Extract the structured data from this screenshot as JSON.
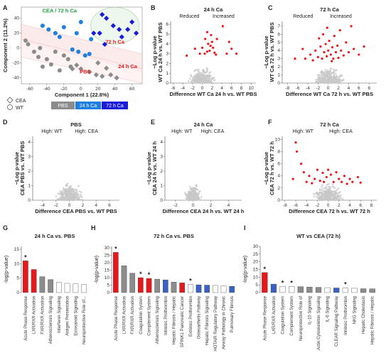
{
  "panel_letters": [
    "A",
    "B",
    "C",
    "D",
    "E",
    "F",
    "G",
    "H",
    "I"
  ],
  "colors": {
    "wt_gray": "#8c8c8c",
    "light_gray": "#c8c8c8",
    "red": "#e8171c",
    "blue": "#1f4fd0",
    "dark_blue": "#1a1adb",
    "mid_blue": "#1f7fe0",
    "green": "#1c9c3c",
    "annot_red": "#e8171c",
    "bar_gray": "#8c8c8c",
    "bar_blue": "#3a62c4",
    "bar_white": "#ffffff"
  },
  "chart_data": [
    {
      "panel": "A",
      "type": "scatter",
      "xlabel": "Component 1 (22.8%)",
      "ylabel": "Component 2 (11.2%)",
      "xticks": [
        "-60",
        "-40",
        "-20",
        "0",
        "20",
        "40",
        "60"
      ],
      "yticks": [
        "-40",
        "-20",
        "0",
        "20",
        "40"
      ],
      "xlim": [
        -70,
        72
      ],
      "ylim": [
        -48,
        55
      ],
      "legend": {
        "shapes": [
          "CEA",
          "WT"
        ],
        "groups": [
          "PBS",
          "24 h Ca",
          "72 h Ca"
        ]
      },
      "annotations": {
        "cea72": "CEA / 72 h Ca",
        "ca72": "72 h Ca",
        "ca24": "24 h Ca",
        "pbs": "PBS"
      },
      "series": [
        {
          "group": "PBS",
          "shape": "diamond",
          "color": "#8c8c8c",
          "points": [
            [
              -5,
              -23
            ],
            [
              0,
              -28
            ],
            [
              10,
              -32
            ],
            [
              18,
              -36
            ],
            [
              30,
              -27
            ],
            [
              25,
              -38
            ],
            [
              35,
              -36
            ],
            [
              42,
              -40
            ],
            [
              20,
              -20
            ],
            [
              -10,
              -28
            ]
          ]
        },
        {
          "group": "PBS",
          "shape": "circle",
          "color": "#8c8c8c",
          "points": [
            [
              -65,
              10
            ],
            [
              -62,
              5
            ],
            [
              -55,
              -5
            ],
            [
              -50,
              -12
            ],
            [
              -48,
              0
            ],
            [
              -40,
              -15
            ],
            [
              -35,
              -22
            ],
            [
              -30,
              -5
            ],
            [
              -25,
              -30
            ],
            [
              -20,
              -10
            ],
            [
              -45,
              -25
            ],
            [
              -15,
              -15
            ],
            [
              -12,
              -25
            ]
          ]
        },
        {
          "group": "24 h Ca",
          "shape": "circle",
          "color": "#1f7fe0",
          "points": [
            [
              -45,
              30
            ],
            [
              -38,
              25
            ],
            [
              -30,
              20
            ],
            [
              -25,
              15
            ],
            [
              -20,
              28
            ],
            [
              -10,
              -2
            ],
            [
              -3,
              -5
            ],
            [
              5,
              -10
            ],
            [
              10,
              -8
            ],
            [
              12,
              12
            ],
            [
              0,
              35
            ],
            [
              -5,
              20
            ]
          ]
        },
        {
          "group": "72 h Ca",
          "shape": "diamond",
          "color": "#1a1adb",
          "points": [
            [
              25,
              45
            ],
            [
              30,
              40
            ],
            [
              38,
              30
            ],
            [
              45,
              25
            ],
            [
              48,
              15
            ],
            [
              55,
              25
            ],
            [
              60,
              35
            ],
            [
              65,
              20
            ],
            [
              28,
              5
            ],
            [
              22,
              20
            ],
            [
              15,
              20
            ]
          ]
        }
      ]
    },
    {
      "panel": "B",
      "type": "scatter",
      "title": "24 h Ca",
      "header": {
        "left": "Reduced",
        "right": "Increased"
      },
      "xlabel": "Difference  WT Ca 24 h vs. WT PBS",
      "ylabel": [
        "−Log p-value",
        "WT Ca 24 h vs. WT PBS"
      ],
      "xticks": [
        "-6",
        "-4",
        "-2",
        "0",
        "2",
        "4",
        "6",
        "8",
        "10"
      ],
      "yticks": [
        "0",
        "1",
        "2",
        "3",
        "4",
        "5",
        "6"
      ],
      "xlim": [
        -6.5,
        11
      ],
      "ylim": [
        0,
        6.3
      ],
      "significant": [
        [
          -3.2,
          2.8
        ],
        [
          -1.5,
          3.5
        ],
        [
          0.5,
          3.0
        ],
        [
          0.6,
          4.5
        ],
        [
          1.0,
          3.2
        ],
        [
          1.2,
          4.0
        ],
        [
          1.5,
          3.3
        ],
        [
          1.7,
          3.8
        ],
        [
          2.0,
          4.2
        ],
        [
          2.2,
          3.6
        ],
        [
          2.5,
          3.1
        ],
        [
          3.0,
          4.5
        ],
        [
          1.8,
          4.9
        ],
        [
          2.8,
          2.9
        ],
        [
          5.0,
          3.0
        ],
        [
          5.5,
          4.2
        ],
        [
          6.0,
          3.5
        ],
        [
          4.2,
          5.8
        ],
        [
          7.0,
          3.0
        ],
        [
          0.0,
          3.6
        ],
        [
          -0.5,
          3.0
        ],
        [
          1.0,
          5.2
        ]
      ]
    },
    {
      "panel": "C",
      "type": "scatter",
      "title": "72 h Ca",
      "header": {
        "left": "Reduced",
        "right": "Increased"
      },
      "xlabel": "Difference  WT Ca 72 h vs. WT PBS",
      "ylabel": [
        "−Log p-value",
        "WT Ca 72 h vs. WT PBS"
      ],
      "xticks": [
        "-8",
        "-6",
        "-4",
        "-2",
        "0",
        "2",
        "4",
        "6",
        "8"
      ],
      "yticks": [
        "0",
        "1",
        "2",
        "3",
        "4",
        "5",
        "6",
        "7"
      ],
      "xlim": [
        -9,
        9.5
      ],
      "ylim": [
        0,
        7.6
      ],
      "significant": [
        [
          -6.5,
          3.0
        ],
        [
          -5.0,
          4.2
        ],
        [
          -4.5,
          3.0
        ],
        [
          -3.5,
          3.5
        ],
        [
          -3.0,
          2.8
        ],
        [
          -2.5,
          4.0
        ],
        [
          -2.0,
          3.2
        ],
        [
          -1.8,
          5.5
        ],
        [
          -1.5,
          4.5
        ],
        [
          -1.2,
          3.0
        ],
        [
          -1.0,
          6.0
        ],
        [
          -0.8,
          3.8
        ],
        [
          -0.5,
          4.8
        ],
        [
          -0.3,
          3.3
        ],
        [
          0.0,
          4.0
        ],
        [
          0.2,
          5.2
        ],
        [
          0.5,
          3.5
        ],
        [
          0.8,
          4.4
        ],
        [
          1.0,
          3.0
        ],
        [
          1.2,
          5.8
        ],
        [
          1.5,
          3.8
        ],
        [
          1.8,
          4.6
        ],
        [
          2.0,
          3.1
        ],
        [
          2.3,
          6.5
        ],
        [
          2.5,
          4.0
        ],
        [
          3.0,
          3.4
        ],
        [
          3.5,
          5.0
        ],
        [
          4.0,
          3.8
        ],
        [
          4.5,
          7.0
        ],
        [
          5.0,
          4.2
        ],
        [
          6.0,
          3.5
        ],
        [
          7.0,
          4.5
        ],
        [
          -0.2,
          6.8
        ],
        [
          0.7,
          2.7
        ]
      ]
    },
    {
      "panel": "D",
      "type": "scatter",
      "title": "PBS",
      "header": {
        "left": "High: WT",
        "right": "High: CEA"
      },
      "xlabel": "Difference CEA PBS vs. WT PBS",
      "ylabel": [
        "−Log p-value",
        "CEA PBS vs. WT PBS"
      ],
      "xticks": [
        "-4",
        "-2",
        "0",
        "2",
        "4",
        "6"
      ],
      "yticks": [
        "0",
        "1",
        "2",
        "3",
        "4"
      ],
      "xlim": [
        -5.5,
        7.5
      ],
      "ylim": [
        0,
        4.4
      ],
      "significant": []
    },
    {
      "panel": "E",
      "type": "scatter",
      "title": "24 h Ca",
      "header": {
        "left": "High: WT",
        "right": "High: CEA"
      },
      "xlabel": "Difference CEA 24 h vs. WT 24 h",
      "ylabel": [
        "−Log p-value",
        "CEA 24 h vs. WT 24 h"
      ],
      "xticks": [
        "-2",
        "0",
        "2",
        "4"
      ],
      "yticks": [
        "0",
        "1",
        "2",
        "3",
        "4"
      ],
      "xlim": [
        -3.2,
        5.5
      ],
      "ylim": [
        0,
        4.4
      ],
      "significant": []
    },
    {
      "panel": "F",
      "type": "scatter",
      "title": "72 h Ca",
      "header": {
        "left": "High: WT",
        "right": "High: CEA"
      },
      "xlabel": "Difference CEA 72 h vs. WT 72 h",
      "ylabel": [
        "−Log p-value",
        "CEA 72 h vs. WT 72 h"
      ],
      "xticks": [
        "-8",
        "-6",
        "-4",
        "-2",
        "0",
        "2",
        "4",
        "6",
        "8"
      ],
      "yticks": [
        "0",
        "2",
        "4",
        "6",
        "8",
        "10"
      ],
      "xlim": [
        -8.5,
        9
      ],
      "ylim": [
        0,
        10.5
      ],
      "significant": [
        [
          -6.0,
          9.5
        ],
        [
          -5.8,
          8.0
        ],
        [
          -6.5,
          3.5
        ],
        [
          -5.0,
          6.0
        ],
        [
          -4.0,
          3.0
        ],
        [
          -3.5,
          4.0
        ],
        [
          -3.0,
          2.8
        ],
        [
          -2.5,
          3.5
        ],
        [
          -2.0,
          5.0
        ],
        [
          -1.5,
          3.2
        ],
        [
          -1.0,
          4.5
        ],
        [
          -0.8,
          3.0
        ],
        [
          -0.3,
          3.8
        ],
        [
          0.5,
          4.2
        ],
        [
          1.0,
          3.0
        ],
        [
          1.5,
          4.6
        ],
        [
          2.0,
          3.5
        ],
        [
          2.5,
          3.0
        ],
        [
          3.0,
          4.0
        ],
        [
          3.5,
          2.7
        ],
        [
          4.0,
          3.5
        ],
        [
          4.5,
          3.0
        ],
        [
          5.5,
          3.8
        ],
        [
          6.0,
          2.9
        ],
        [
          -4.5,
          4.6
        ],
        [
          0.0,
          5.0
        ]
      ]
    },
    {
      "panel": "G",
      "type": "bar",
      "title": "24 h Ca vs. PBS",
      "ylabel": "-log(p-value)",
      "yticks": [
        "0",
        "5",
        "10",
        "15"
      ],
      "ylim": [
        0,
        16
      ],
      "categories": [
        "Acute Phase Response",
        "LXR/RXR Activation",
        "FXR/RXR Activation",
        "Atherosclerosis Signaling",
        "Interferon Signaling",
        "Antigen Presentation",
        "Eicosanoid Signaling",
        "Neuroprotective Role of..."
      ],
      "values": [
        11,
        8,
        5.5,
        4.5,
        3.5,
        3.2,
        3.0,
        2.8
      ],
      "bar_colors": [
        "red",
        "red",
        "gray",
        "gray",
        "white",
        "white",
        "white",
        "white"
      ],
      "stars": [
        0
      ]
    },
    {
      "panel": "H",
      "type": "bar",
      "title": "72 h Ca vs. PBS",
      "ylabel": "-log(p-value)",
      "yticks": [
        "0",
        "5",
        "10",
        "15",
        "20",
        "25",
        "30"
      ],
      "ylim": [
        0,
        31
      ],
      "categories": [
        "Acute Phase Response",
        "LXR/RXR Activation",
        "FXR/RXR Activation",
        "Coagulation System",
        "Complement System",
        "Atherosclerosis Signaling",
        "Intrinsic Prothrombin",
        "Hepatic Fibrosis / Hepatic",
        "SPINK1 Pancreatic Cancer",
        "Extrinsic Prothrombin",
        "Osteoarthritis Pathway",
        "Hepatic Fibrosis Signaling",
        "HOTAIR Regulatory Pathway",
        "Airway Pathology in Chronic",
        "Pulmonary Fibrosis"
      ],
      "values": [
        27,
        18,
        13,
        10,
        9.5,
        9,
        8.5,
        7,
        6.5,
        5.5,
        5.2,
        5,
        4.8,
        4.5,
        4.2
      ],
      "bar_colors": [
        "red",
        "gray",
        "gray",
        "red",
        "red",
        "gray",
        "blue",
        "gray",
        "red",
        "white",
        "blue",
        "blue",
        "white",
        "white",
        "blue"
      ],
      "stars": [
        0,
        3,
        4,
        9
      ]
    },
    {
      "panel": "I",
      "type": "bar",
      "title": "WT vs CEA (72 h)",
      "ylabel": "-log(p-value)",
      "yticks": [
        "0",
        "5",
        "10",
        "15",
        "20",
        "25",
        "30"
      ],
      "ylim": [
        0,
        30
      ],
      "categories": [
        "Acute Phase Response",
        "LXR/RXR Activation",
        "Coagulation System",
        "Complement System",
        "Neuroprotective Role of",
        "IL-10 Signaling",
        "Actin Cytoskeleton Signaling",
        "IL-6 Signaling",
        "CLEAR Signaling Pathway",
        "Intrinsic Prothrombin",
        "NKG Signaling",
        "Hepatic Cholestasis",
        "Hepatic Fibrosis / Hepatic"
      ],
      "values": [
        13,
        5.5,
        4,
        4,
        3.8,
        3.6,
        3.4,
        3.2,
        3,
        2.9,
        2.8,
        2.5,
        2.4
      ],
      "bar_colors": [
        "red",
        "blue",
        "white",
        "white",
        "gray",
        "gray",
        "gray",
        "white",
        "blue",
        "white",
        "white",
        "gray",
        "gray"
      ],
      "stars": [
        0,
        2,
        3,
        9
      ]
    }
  ]
}
